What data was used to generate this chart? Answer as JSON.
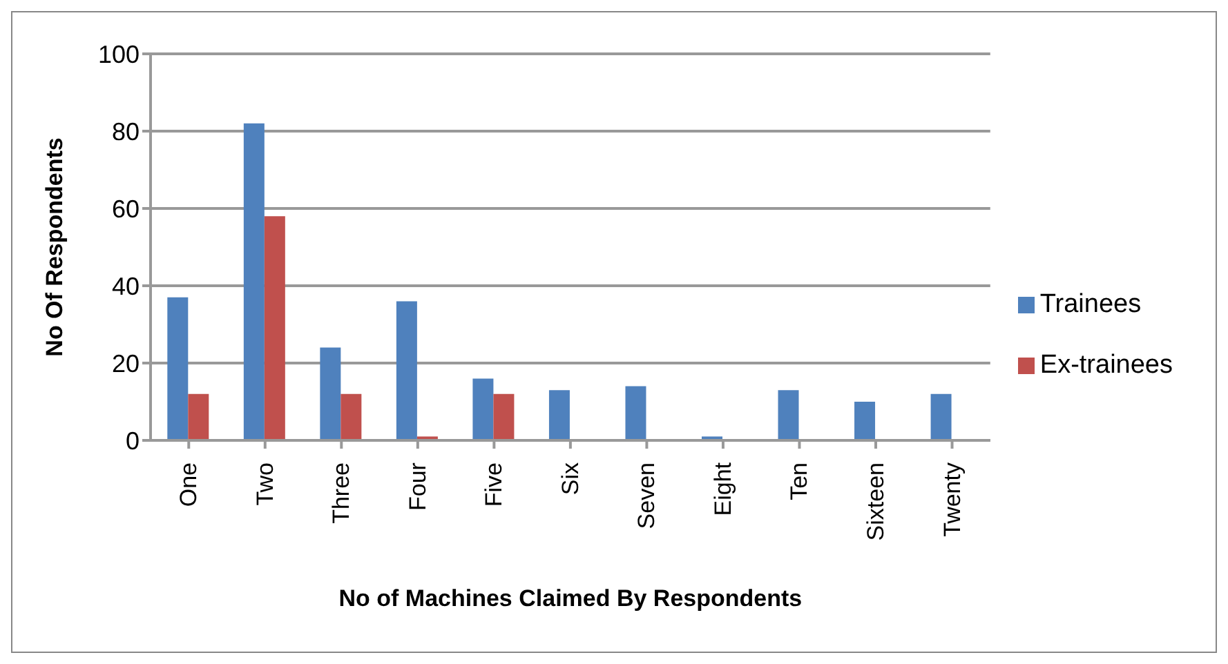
{
  "chart_data": {
    "type": "bar",
    "xlabel": "No of Machines Claimed By Respondents",
    "ylabel": "No Of Respondents",
    "categories": [
      "One",
      "Two",
      "Three",
      "Four",
      "Five",
      "Six",
      "Seven",
      "Eight",
      "Ten",
      "Sixteen",
      "Twenty"
    ],
    "series": [
      {
        "name": "Trainees",
        "color": "#4f81bd",
        "values": [
          37,
          82,
          24,
          36,
          16,
          13,
          14,
          1,
          13,
          10,
          12
        ]
      },
      {
        "name": "Ex-trainees",
        "color": "#c0504d",
        "values": [
          12,
          58,
          12,
          1,
          12,
          0,
          0,
          0,
          0,
          0,
          0
        ]
      }
    ],
    "ylim": [
      0,
      100
    ],
    "yticks": [
      0,
      20,
      40,
      60,
      80,
      100
    ],
    "grid": "y",
    "legend": "right"
  }
}
